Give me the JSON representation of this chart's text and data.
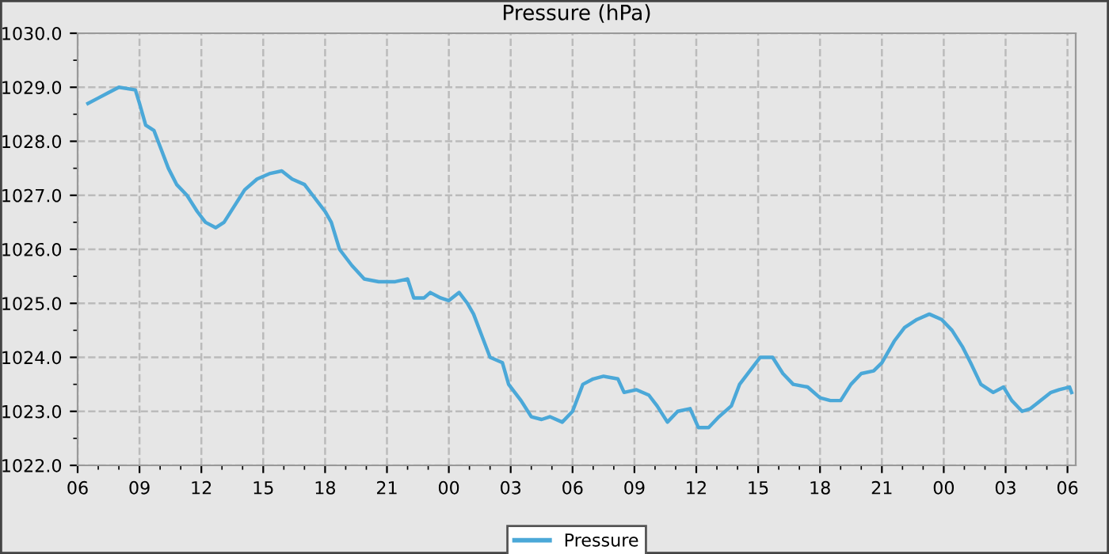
{
  "chart_data": {
    "type": "line",
    "title": "Pressure (hPa)",
    "x": [
      6.5,
      7.0,
      7.5,
      8.0,
      8.8,
      9.0,
      9.3,
      9.7,
      10.0,
      10.4,
      10.8,
      11.3,
      11.8,
      12.2,
      12.7,
      13.1,
      13.6,
      14.1,
      14.7,
      15.3,
      15.9,
      16.4,
      17.0,
      17.4,
      18.0,
      18.3,
      18.7,
      19.3,
      19.9,
      20.6,
      21.4,
      22.0,
      22.3,
      22.8,
      23.1,
      23.6,
      24.0,
      24.5,
      24.9,
      25.2,
      25.6,
      26.0,
      26.6,
      26.9,
      27.5,
      28.0,
      28.5,
      28.9,
      29.5,
      30.0,
      30.5,
      31.0,
      31.5,
      32.2,
      32.5,
      33.1,
      33.7,
      34.1,
      34.6,
      35.1,
      35.7,
      36.1,
      36.6,
      37.1,
      37.7,
      38.1,
      38.7,
      39.1,
      39.7,
      40.2,
      40.7,
      41.4,
      42.0,
      42.5,
      43.0,
      43.5,
      44.0,
      44.6,
      45.0,
      45.6,
      46.1,
      46.7,
      47.3,
      47.9,
      48.4,
      48.9,
      49.3,
      49.8,
      50.4,
      50.9,
      51.3,
      51.8,
      52.2,
      52.7,
      53.2,
      53.6,
      54.1,
      54.2
    ],
    "series": [
      {
        "name": "Pressure",
        "color": "#4ba8d8",
        "values": [
          1028.7,
          1028.8,
          1028.9,
          1029.0,
          1028.95,
          1028.7,
          1028.3,
          1028.2,
          1027.9,
          1027.5,
          1027.2,
          1027.0,
          1026.7,
          1026.5,
          1026.4,
          1026.5,
          1026.8,
          1027.1,
          1027.3,
          1027.4,
          1027.45,
          1027.3,
          1027.2,
          1027.0,
          1026.7,
          1026.5,
          1026.0,
          1025.7,
          1025.45,
          1025.4,
          1025.4,
          1025.45,
          1025.1,
          1025.1,
          1025.2,
          1025.1,
          1025.05,
          1025.2,
          1025.0,
          1024.8,
          1024.4,
          1024.0,
          1023.9,
          1023.5,
          1023.2,
          1022.9,
          1022.85,
          1022.9,
          1022.8,
          1023.0,
          1023.5,
          1023.6,
          1023.65,
          1023.6,
          1023.35,
          1023.4,
          1023.3,
          1023.1,
          1022.8,
          1023.0,
          1023.05,
          1022.7,
          1022.7,
          1022.9,
          1023.1,
          1023.5,
          1023.8,
          1024.0,
          1024.0,
          1023.7,
          1023.5,
          1023.45,
          1023.25,
          1023.2,
          1023.2,
          1023.5,
          1023.7,
          1023.75,
          1023.9,
          1024.3,
          1024.55,
          1024.7,
          1024.8,
          1024.7,
          1024.5,
          1024.2,
          1023.9,
          1023.5,
          1023.35,
          1023.45,
          1023.2,
          1023.0,
          1023.05,
          1023.2,
          1023.35,
          1023.4,
          1023.45,
          1023.35
        ]
      }
    ],
    "xlim": [
      6,
      54.4
    ],
    "xticks": [
      {
        "value": 6,
        "label": "06"
      },
      {
        "value": 9,
        "label": "09"
      },
      {
        "value": 12,
        "label": "12"
      },
      {
        "value": 15,
        "label": "15"
      },
      {
        "value": 18,
        "label": "18"
      },
      {
        "value": 21,
        "label": "21"
      },
      {
        "value": 24,
        "label": "00"
      },
      {
        "value": 27,
        "label": "03"
      },
      {
        "value": 30,
        "label": "06"
      },
      {
        "value": 33,
        "label": "09"
      },
      {
        "value": 36,
        "label": "12"
      },
      {
        "value": 39,
        "label": "15"
      },
      {
        "value": 42,
        "label": "18"
      },
      {
        "value": 45,
        "label": "21"
      },
      {
        "value": 48,
        "label": "00"
      },
      {
        "value": 51,
        "label": "03"
      },
      {
        "value": 54,
        "label": "06"
      }
    ],
    "ylim": [
      1022,
      1030
    ],
    "yticks": [
      {
        "value": 1022,
        "label": "1022.0"
      },
      {
        "value": 1023,
        "label": "1023.0"
      },
      {
        "value": 1024,
        "label": "1024.0"
      },
      {
        "value": 1025,
        "label": "1025.0"
      },
      {
        "value": 1026,
        "label": "1026.0"
      },
      {
        "value": 1027,
        "label": "1027.0"
      },
      {
        "value": 1028,
        "label": "1028.0"
      },
      {
        "value": 1029,
        "label": "1029.0"
      },
      {
        "value": 1030,
        "label": "1030.0"
      }
    ],
    "grid": true,
    "legend": "bottom",
    "marker": "none",
    "line_style": "solid"
  }
}
